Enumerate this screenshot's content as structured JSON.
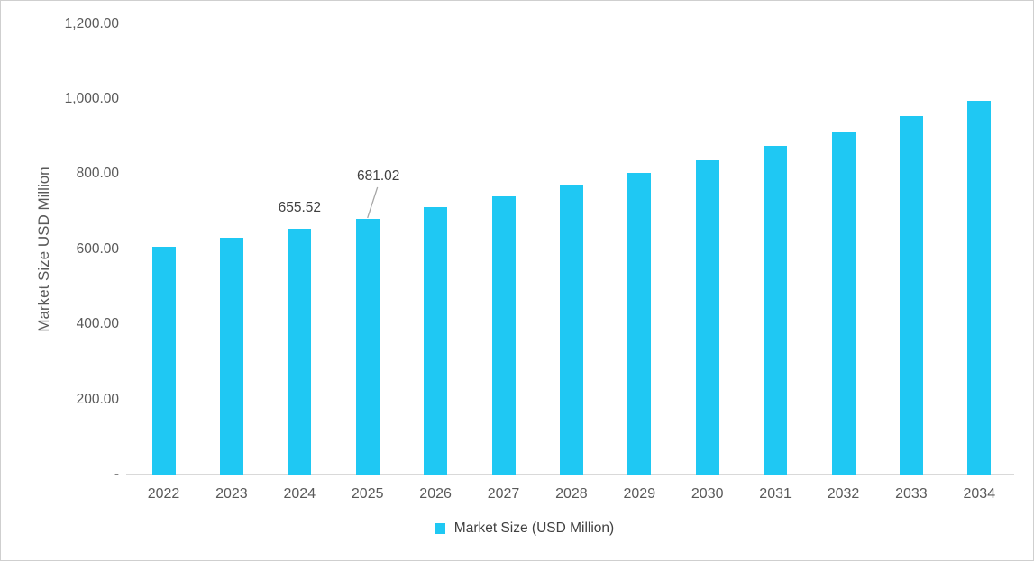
{
  "chart_data": {
    "type": "bar",
    "title": "",
    "xlabel": "",
    "ylabel": "Market Size USD Million",
    "categories": [
      "2022",
      "2023",
      "2024",
      "2025",
      "2026",
      "2027",
      "2028",
      "2029",
      "2030",
      "2031",
      "2032",
      "2033",
      "2034"
    ],
    "series": [
      {
        "name": "Market Size (USD Million)",
        "values": [
          607.4,
          631.0,
          655.52,
          681.02,
          711,
          740,
          771,
          803,
          836,
          874,
          912,
          955,
          996
        ]
      }
    ],
    "ylim": [
      0,
      1200
    ],
    "ytick_interval": 200,
    "yticks": [
      {
        "value": 1200,
        "label": "1,200.00"
      },
      {
        "value": 1000,
        "label": "1,000.00"
      },
      {
        "value": 800,
        "label": "800.00"
      },
      {
        "value": 600,
        "label": "600.00"
      },
      {
        "value": 400,
        "label": "400.00"
      },
      {
        "value": 200,
        "label": "200.00"
      },
      {
        "value": 0,
        "label": "-"
      }
    ],
    "grid": false,
    "legend_position": "bottom",
    "legend": {
      "items": [
        {
          "label": "Market Size (USD Million)",
          "color": "#1FC8F3"
        }
      ]
    },
    "annotations": [
      {
        "category": "2024",
        "index": 2,
        "text": "655.52",
        "dx": 0,
        "gap": 14,
        "leader": false
      },
      {
        "category": "2025",
        "index": 3,
        "text": "681.02",
        "dx": 12,
        "gap": 38,
        "leader": true
      }
    ],
    "colors": {
      "bar": "#1FC8F3",
      "axis_line": "#D9D9D9",
      "tick_text": "#595959",
      "axis_title_text": "#595959",
      "data_label_text": "#404040",
      "legend_text": "#404040",
      "leader_line": "#A6A6A6",
      "frame_border": "#CFCFCF",
      "background": "#FFFFFF"
    }
  }
}
